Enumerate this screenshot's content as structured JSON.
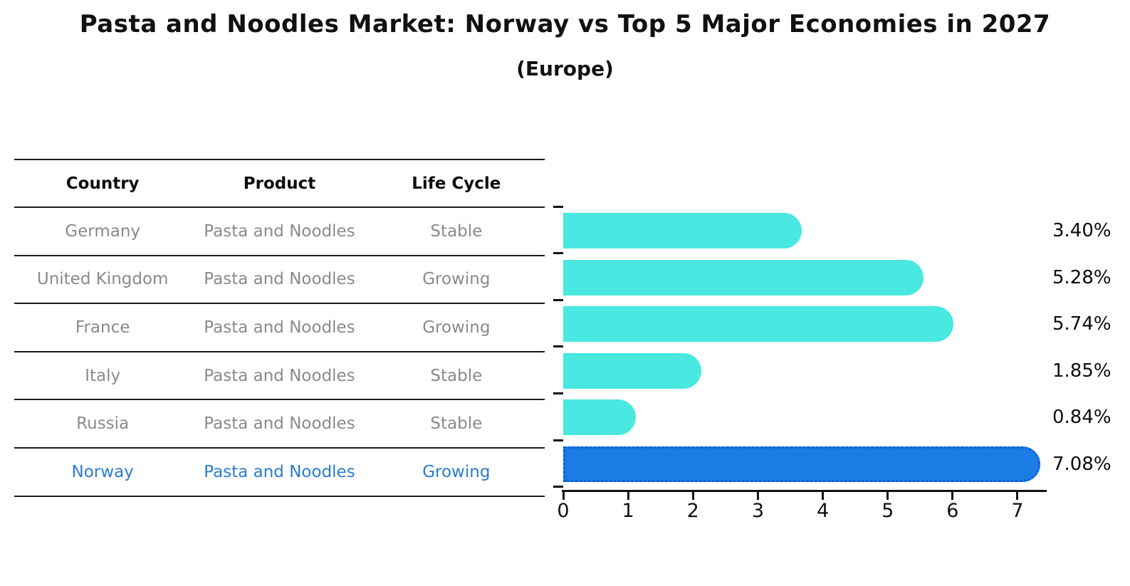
{
  "title": "Pasta and Noodles Market: Norway vs Top 5 Major Economies in 2027",
  "subtitle": "(Europe)",
  "table": {
    "headers": {
      "country": "Country",
      "product": "Product",
      "life_cycle": "Life Cycle"
    },
    "rows": [
      {
        "country": "Germany",
        "product": "Pasta and Noodles",
        "life_cycle": "Stable",
        "highlight": false
      },
      {
        "country": "United Kingdom",
        "product": "Pasta and Noodles",
        "life_cycle": "Growing",
        "highlight": false
      },
      {
        "country": "France",
        "product": "Pasta and Noodles",
        "life_cycle": "Growing",
        "highlight": false
      },
      {
        "country": "Italy",
        "product": "Pasta and Noodles",
        "life_cycle": "Stable",
        "highlight": false
      },
      {
        "country": "Russia",
        "product": "Pasta and Noodles",
        "life_cycle": "Stable",
        "highlight": false
      },
      {
        "country": "Norway",
        "product": "Pasta and Noodles",
        "life_cycle": "Growing",
        "highlight": true
      }
    ]
  },
  "chart_data": {
    "type": "bar",
    "orientation": "horizontal",
    "title": "Pasta and Noodles Market: Norway vs Top 5 Major Economies in 2027 (Europe)",
    "categories": [
      "Germany",
      "United Kingdom",
      "France",
      "Italy",
      "Russia",
      "Norway"
    ],
    "values": [
      3.4,
      5.28,
      5.74,
      1.85,
      0.84,
      7.08
    ],
    "value_labels": [
      "3.40%",
      "5.28%",
      "5.74%",
      "1.85%",
      "0.84%",
      "7.08%"
    ],
    "x_ticks": [
      "0",
      "1",
      "2",
      "3",
      "4",
      "5",
      "6",
      "7"
    ],
    "xlim": [
      0,
      7.45
    ],
    "grid": false,
    "legend": false,
    "highlight_index": 5
  },
  "colors": {
    "bar": "#49E8E1",
    "highlight_bar": "#1B7CE5",
    "highlight_border": "#0E5ED2",
    "highlight_text": "#2b7ccd",
    "row_text": "#8a8a8a",
    "axis": "#111111"
  }
}
